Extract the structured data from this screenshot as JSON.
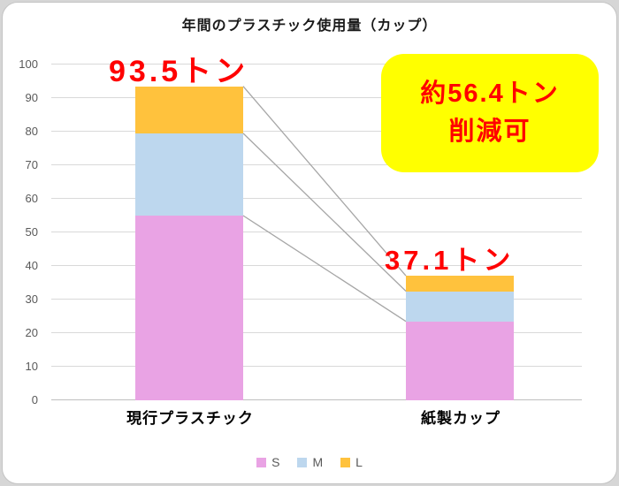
{
  "chart_data": {
    "type": "bar",
    "stacked": true,
    "title": "年間のプラスチック使用量（カップ）",
    "categories": [
      "現行プラスチック",
      "紙製カップ"
    ],
    "series": [
      {
        "name": "S",
        "color": "#e9a3e4",
        "values": [
          55.0,
          23.5
        ]
      },
      {
        "name": "M",
        "color": "#bdd7ee",
        "values": [
          24.5,
          9.0
        ]
      },
      {
        "name": "L",
        "color": "#ffc23d",
        "values": [
          14.0,
          4.6
        ]
      }
    ],
    "totals": [
      93.5,
      37.1
    ],
    "ylim": [
      0,
      100
    ],
    "ytick_step": 10,
    "grid": true,
    "legend_position": "bottom",
    "series_lines": true
  },
  "annotations": {
    "bar1_total": "93.5トン",
    "bar2_total": "37.1トン",
    "callout_line1": "約56.4トン",
    "callout_line2": "削減可"
  },
  "colors": {
    "annotation_text": "#ff0000",
    "callout_bg": "#ffff00",
    "gridline": "#d9d9d9",
    "series_line": "#a6a6a6"
  }
}
